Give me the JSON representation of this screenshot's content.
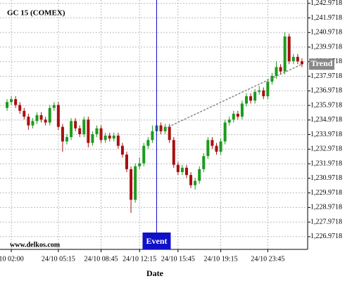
{
  "chart_data": {
    "type": "candlestick",
    "title": "GC 15 (COMEX)",
    "x_label": "Date",
    "watermark": "www.delkos.com",
    "categories": [
      null,
      "10 02:00",
      null,
      null,
      null,
      null,
      null,
      null,
      null,
      null,
      null,
      null,
      "24/10 05:15",
      null,
      null,
      null,
      null,
      null,
      null,
      null,
      null,
      null,
      "24/10 08:45",
      null,
      null,
      null,
      null,
      null,
      null,
      null,
      null,
      "24/10 12:15",
      null,
      null,
      null,
      null,
      null,
      null,
      null,
      null,
      "24/10 15:45",
      null,
      null,
      null,
      null,
      null,
      null,
      null,
      null,
      null,
      "24/10 19:15",
      null,
      null,
      null,
      null,
      null,
      null,
      null,
      null,
      null,
      null,
      "24/10 23:45",
      null,
      null,
      null,
      null,
      null,
      null,
      null,
      null
    ],
    "open": [
      1235.8,
      1236.2,
      1236.4,
      1236.0,
      1235.6,
      1235.2,
      1234.6,
      1234.9,
      1235.3,
      1235.0,
      1234.8,
      1235.8,
      1236.0,
      1234.5,
      1233.5,
      1233.8,
      1234.9,
      1234.4,
      1234.0,
      1235.0,
      1233.4,
      1234.0,
      1234.4,
      1233.6,
      1233.9,
      1233.7,
      1233.9,
      1233.2,
      1232.6,
      1231.6,
      1229.5,
      1231.8,
      1232.0,
      1233.2,
      1233.6,
      1234.2,
      1234.6,
      1234.2,
      1234.5,
      1233.6,
      1231.9,
      1231.4,
      1231.7,
      1231.2,
      1230.5,
      1230.8,
      1231.6,
      1232.5,
      1233.6,
      1233.2,
      1232.8,
      1233.5,
      1234.8,
      1235.0,
      1235.4,
      1235.2,
      1236.1,
      1236.6,
      1236.3,
      1236.9,
      1237.0,
      1236.6,
      1237.6,
      1238.0,
      1238.6,
      1238.3,
      1240.7,
      1239.0,
      1239.3,
      1239.0
    ],
    "high": [
      1236.4,
      1236.6,
      1236.6,
      1236.2,
      1235.8,
      1235.4,
      1235.1,
      1235.5,
      1235.5,
      1235.2,
      1236.0,
      1236.2,
      1236.2,
      1234.7,
      1234.0,
      1235.1,
      1235.1,
      1234.6,
      1235.2,
      1235.2,
      1234.2,
      1234.6,
      1234.6,
      1234.1,
      1234.1,
      1234.1,
      1234.1,
      1233.4,
      1232.8,
      1231.8,
      1232.0,
      1232.4,
      1233.4,
      1233.8,
      1234.6,
      1234.8,
      1234.8,
      1234.7,
      1234.7,
      1233.8,
      1232.1,
      1231.9,
      1231.9,
      1231.4,
      1231.0,
      1231.8,
      1232.7,
      1233.8,
      1233.8,
      1233.4,
      1233.7,
      1235.0,
      1235.2,
      1235.6,
      1235.6,
      1236.3,
      1236.8,
      1236.8,
      1237.1,
      1237.3,
      1237.2,
      1237.8,
      1238.2,
      1239.0,
      1238.8,
      1241.0,
      1240.9,
      1239.5,
      1239.5,
      1239.2
    ],
    "low": [
      1235.6,
      1236.0,
      1235.8,
      1235.4,
      1235.0,
      1234.3,
      1234.4,
      1234.7,
      1234.8,
      1234.6,
      1234.6,
      1235.6,
      1234.3,
      1232.8,
      1233.3,
      1233.6,
      1234.2,
      1233.8,
      1233.8,
      1233.1,
      1233.2,
      1233.8,
      1233.4,
      1233.4,
      1233.5,
      1233.5,
      1233.0,
      1232.4,
      1231.4,
      1228.6,
      1229.3,
      1231.6,
      1231.8,
      1233.0,
      1233.4,
      1234.0,
      1234.0,
      1234.0,
      1233.4,
      1231.7,
      1231.2,
      1231.2,
      1231.0,
      1230.3,
      1230.2,
      1230.6,
      1231.4,
      1232.3,
      1233.0,
      1232.6,
      1232.6,
      1233.3,
      1234.6,
      1234.8,
      1235.0,
      1235.0,
      1235.9,
      1236.1,
      1236.1,
      1236.7,
      1236.4,
      1236.4,
      1237.4,
      1237.8,
      1238.1,
      1238.1,
      1238.8,
      1238.8,
      1238.8,
      1238.6
    ],
    "close": [
      1236.2,
      1236.4,
      1236.0,
      1235.6,
      1235.2,
      1234.6,
      1234.9,
      1235.3,
      1235.0,
      1234.8,
      1235.8,
      1236.0,
      1234.5,
      1233.5,
      1233.8,
      1234.9,
      1234.4,
      1234.0,
      1235.0,
      1233.4,
      1234.0,
      1234.4,
      1233.6,
      1233.9,
      1233.7,
      1233.9,
      1233.2,
      1232.6,
      1231.6,
      1229.5,
      1231.8,
      1232.0,
      1233.2,
      1233.6,
      1234.2,
      1234.6,
      1234.2,
      1234.5,
      1233.6,
      1231.9,
      1231.4,
      1231.7,
      1231.2,
      1230.5,
      1230.8,
      1231.6,
      1232.5,
      1233.6,
      1233.2,
      1232.8,
      1233.5,
      1234.8,
      1235.0,
      1235.4,
      1235.2,
      1236.1,
      1236.6,
      1236.3,
      1236.9,
      1237.0,
      1236.6,
      1237.6,
      1238.0,
      1238.6,
      1238.3,
      1240.7,
      1239.0,
      1239.3,
      1239.0,
      1238.8
    ],
    "up_color": "#1e9a1e",
    "down_color": "#a81010",
    "ylim": [
      1226.1,
      1243.2
    ],
    "yticks": [
      {
        "value": 1226.9718,
        "label": "1,226.9718"
      },
      {
        "value": 1227.9718,
        "label": "1,227.9718"
      },
      {
        "value": 1228.9718,
        "label": "1,228.9718"
      },
      {
        "value": 1229.9718,
        "label": "1,229.9718"
      },
      {
        "value": 1230.9718,
        "label": "1,230.9718"
      },
      {
        "value": 1231.9718,
        "label": "1,231.9718"
      },
      {
        "value": 1232.9718,
        "label": "1,232.9718"
      },
      {
        "value": 1233.9718,
        "label": "1,233.9718"
      },
      {
        "value": 1234.9718,
        "label": "1,234.9718"
      },
      {
        "value": 1235.9718,
        "label": "1,235.9718"
      },
      {
        "value": 1236.9718,
        "label": "1,236.9718"
      },
      {
        "value": 1237.9718,
        "label": "1,237.9718"
      },
      {
        "value": 1238.9718,
        "label": "1,238.9718"
      },
      {
        "value": 1239.9718,
        "label": "1,239.9718"
      },
      {
        "value": 1240.9718,
        "label": "1,240.9718"
      },
      {
        "value": 1241.9718,
        "label": "1,241.9718"
      },
      {
        "value": 1242.9718,
        "label": "1,242.9718"
      }
    ],
    "grid": true,
    "event": {
      "label": "Event",
      "index": 35,
      "color": "#1010c8"
    },
    "trend": {
      "label": "Trend",
      "start_index": 37,
      "start_value": 1234.4,
      "end_index": 69,
      "end_value": 1238.8,
      "color": "#888888"
    }
  }
}
